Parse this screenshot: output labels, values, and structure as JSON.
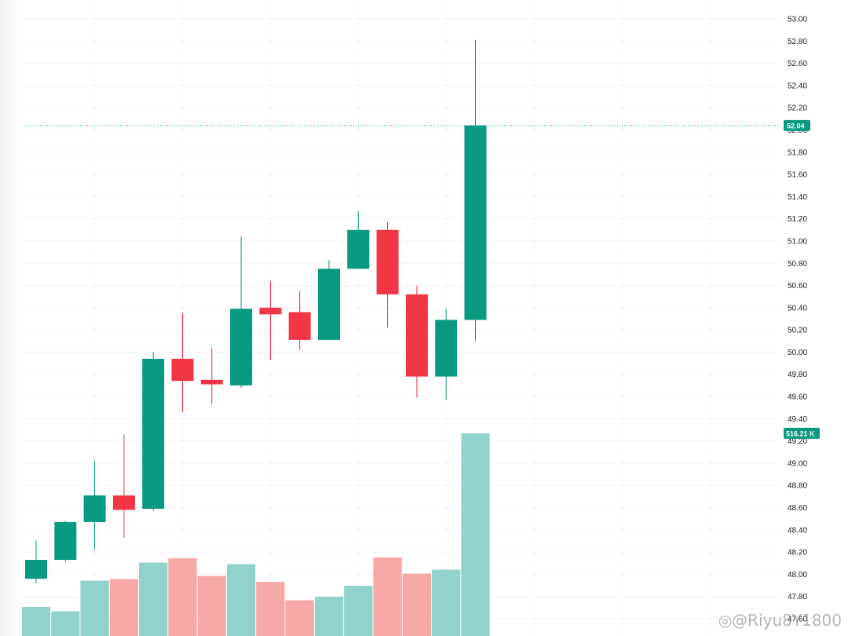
{
  "chart_data": {
    "type": "candlestick",
    "price_axis": {
      "ylim": [
        47.6,
        53.0
      ],
      "ticks": [
        "53.00",
        "52.80",
        "52.60",
        "52.40",
        "52.20",
        "52.00",
        "51.80",
        "51.60",
        "51.40",
        "51.20",
        "51.00",
        "50.80",
        "50.60",
        "50.40",
        "50.20",
        "50.00",
        "49.80",
        "49.60",
        "49.40",
        "49.20",
        "49.00",
        "48.80",
        "48.60",
        "48.40",
        "48.20",
        "48.00",
        "47.80",
        "47.60"
      ]
    },
    "last_price": {
      "label": "52.04",
      "value": 52.04
    },
    "last_volume": {
      "label": "516.21 K",
      "value": 516.21
    },
    "candles": [
      {
        "open": 47.96,
        "high": 48.31,
        "low": 47.92,
        "close": 48.13
      },
      {
        "open": 48.13,
        "high": 48.48,
        "low": 48.11,
        "close": 48.47
      },
      {
        "open": 48.47,
        "high": 49.02,
        "low": 48.22,
        "close": 48.71
      },
      {
        "open": 48.71,
        "high": 49.26,
        "low": 48.33,
        "close": 48.58
      },
      {
        "open": 48.59,
        "high": 50.0,
        "low": 48.57,
        "close": 49.94
      },
      {
        "open": 49.94,
        "high": 50.35,
        "low": 49.46,
        "close": 49.74
      },
      {
        "open": 49.75,
        "high": 50.04,
        "low": 49.53,
        "close": 49.71
      },
      {
        "open": 49.7,
        "high": 51.04,
        "low": 49.68,
        "close": 50.39
      },
      {
        "open": 50.4,
        "high": 50.64,
        "low": 49.93,
        "close": 50.34
      },
      {
        "open": 50.36,
        "high": 50.55,
        "low": 50.02,
        "close": 50.11
      },
      {
        "open": 50.11,
        "high": 50.83,
        "low": 50.11,
        "close": 50.75
      },
      {
        "open": 50.75,
        "high": 51.27,
        "low": 50.75,
        "close": 51.1
      },
      {
        "open": 51.1,
        "high": 51.17,
        "low": 50.22,
        "close": 50.52
      },
      {
        "open": 50.52,
        "high": 50.6,
        "low": 49.59,
        "close": 49.78
      },
      {
        "open": 49.78,
        "high": 50.39,
        "low": 49.57,
        "close": 50.29
      },
      {
        "open": 50.29,
        "high": 52.81,
        "low": 50.1,
        "close": 52.04
      }
    ],
    "volume_ylim": [
      0,
      580
    ],
    "volumes": [
      74,
      63,
      141,
      145,
      187,
      198,
      153,
      183,
      138,
      91,
      100,
      128,
      200,
      159,
      169,
      516.21
    ],
    "colors": {
      "up": "#089981",
      "down": "#f23645",
      "up_volume": "#92d2cc",
      "down_volume": "#f7a9a7",
      "grid": "#f0f3fa",
      "price_line": "#089981"
    }
  },
  "watermark": "◎@Riyu8Y1800"
}
